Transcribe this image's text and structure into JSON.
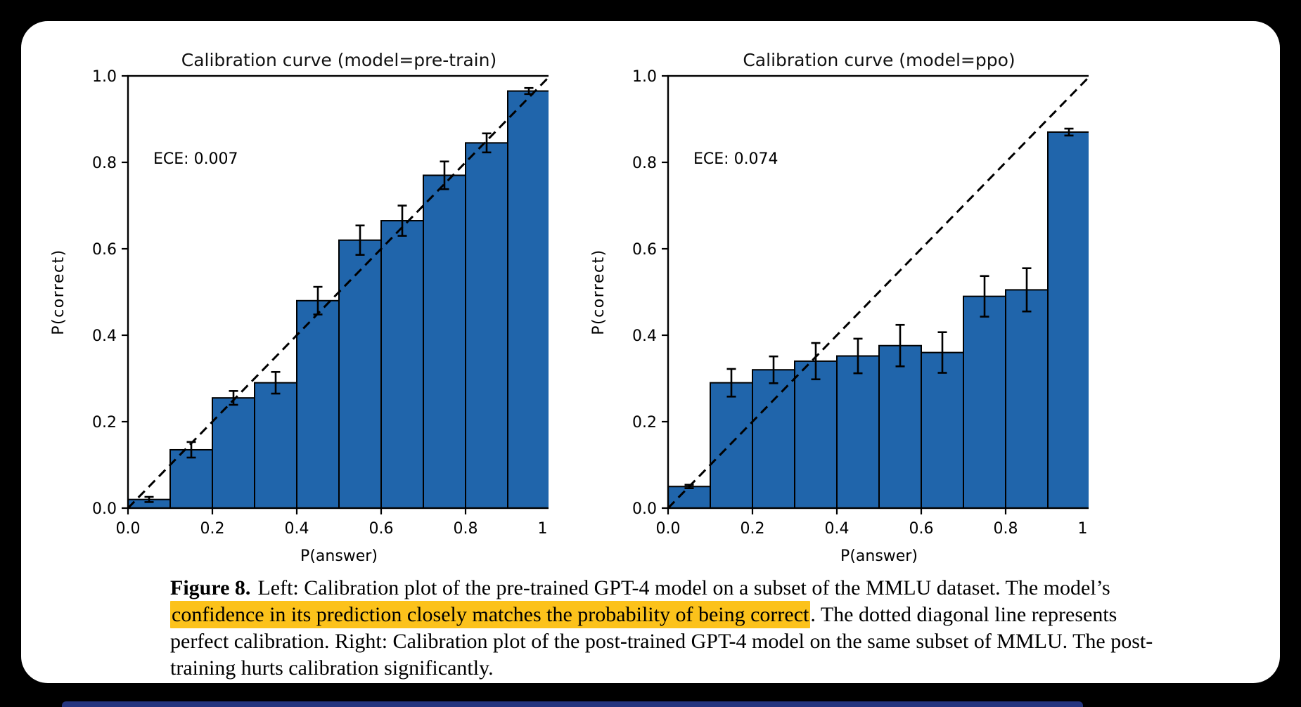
{
  "page": {
    "background_color": "#000000",
    "card_color": "#ffffff",
    "bottom_strip_color": "#24357f"
  },
  "caption": {
    "label": "Figure 8.",
    "before_highlight": "Left: Calibration plot of the pre-trained GPT-4 model on a subset of the MMLU dataset. The model’s ",
    "highlight": "confidence in its prediction closely matches the probability of being correct",
    "after_highlight": ". The dotted diagonal line represents perfect calibration. Right: Calibration plot of the post-trained GPT-4 model on the same subset of MMLU. The post-training hurts calibration significantly.",
    "highlight_color": "#fcc21b"
  },
  "chart_data": [
    {
      "type": "bar",
      "name": "calibration-chart-pretrain",
      "title": "Calibration curve (model=pre-train)",
      "annotation": "ECE: 0.007",
      "xlabel": "P(answer)",
      "ylabel": "P(correct)",
      "xlim": [
        0.0,
        1.0
      ],
      "ylim": [
        0.0,
        1.0
      ],
      "xticks": [
        "0.0",
        "0.2",
        "0.4",
        "0.6",
        "0.8",
        "1.0"
      ],
      "yticks": [
        "0.0",
        "0.2",
        "0.4",
        "0.6",
        "0.8",
        "1.0"
      ],
      "bin_width": 0.1,
      "bin_centers": [
        0.05,
        0.15,
        0.25,
        0.35,
        0.45,
        0.55,
        0.65,
        0.75,
        0.85,
        0.95
      ],
      "values": [
        0.02,
        0.135,
        0.255,
        0.29,
        0.48,
        0.62,
        0.665,
        0.77,
        0.845,
        0.965
      ],
      "errors": [
        0.006,
        0.018,
        0.016,
        0.025,
        0.032,
        0.034,
        0.035,
        0.032,
        0.022,
        0.007
      ],
      "diagonal_reference": true,
      "grid": false,
      "legend": false,
      "bar_color": "#2065ab",
      "edge_color": "#000000"
    },
    {
      "type": "bar",
      "name": "calibration-chart-ppo",
      "title": "Calibration curve (model=ppo)",
      "annotation": "ECE: 0.074",
      "xlabel": "P(answer)",
      "ylabel": "P(correct)",
      "xlim": [
        0.0,
        1.0
      ],
      "ylim": [
        0.0,
        1.0
      ],
      "xticks": [
        "0.0",
        "0.2",
        "0.4",
        "0.6",
        "0.8",
        "1.0"
      ],
      "yticks": [
        "0.0",
        "0.2",
        "0.4",
        "0.6",
        "0.8",
        "1.0"
      ],
      "bin_width": 0.1,
      "bin_centers": [
        0.05,
        0.15,
        0.25,
        0.35,
        0.45,
        0.55,
        0.65,
        0.75,
        0.85,
        0.95
      ],
      "values": [
        0.05,
        0.29,
        0.32,
        0.34,
        0.352,
        0.376,
        0.36,
        0.49,
        0.505,
        0.87
      ],
      "errors": [
        0.004,
        0.032,
        0.031,
        0.042,
        0.04,
        0.048,
        0.047,
        0.047,
        0.05,
        0.008
      ],
      "diagonal_reference": true,
      "grid": false,
      "legend": false,
      "bar_color": "#2065ab",
      "edge_color": "#000000"
    }
  ]
}
